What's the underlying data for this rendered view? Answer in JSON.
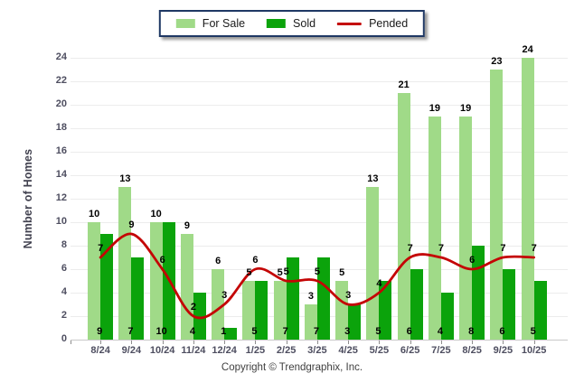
{
  "legend": {
    "border_color": "#1F3864",
    "items": [
      {
        "label": "For Sale",
        "type": "bar",
        "color": "#A0DA88"
      },
      {
        "label": "Sold",
        "type": "bar",
        "color": "#0BA30B"
      },
      {
        "label": "Pended",
        "type": "line",
        "color": "#C40505"
      }
    ]
  },
  "chart_data": {
    "type": "bar",
    "title": "",
    "xlabel": "",
    "ylabel": "Number of Homes",
    "ylim": [
      0,
      24
    ],
    "y_ticks": [
      0,
      2,
      4,
      6,
      8,
      10,
      12,
      14,
      16,
      18,
      20,
      22,
      24
    ],
    "grid": true,
    "legend_position": "top-center",
    "categories": [
      "8/24",
      "9/24",
      "10/24",
      "11/24",
      "12/24",
      "1/25",
      "2/25",
      "3/25",
      "4/25",
      "5/25",
      "6/25",
      "7/25",
      "8/25",
      "9/25",
      "10/25"
    ],
    "series": [
      {
        "name": "For Sale",
        "type": "bar",
        "color": "#A0DA88",
        "values": [
          10,
          13,
          10,
          9,
          6,
          5,
          5,
          3,
          5,
          13,
          21,
          19,
          19,
          23,
          24
        ]
      },
      {
        "name": "Sold",
        "type": "bar",
        "color": "#0BA30B",
        "values": [
          9,
          7,
          10,
          4,
          1,
          5,
          7,
          7,
          3,
          5,
          6,
          4,
          8,
          6,
          5
        ]
      },
      {
        "name": "Pended",
        "type": "line",
        "color": "#C40505",
        "values": [
          7,
          9,
          6,
          2,
          3,
          6,
          5,
          5,
          3,
          4,
          7,
          7,
          6,
          7,
          7
        ]
      }
    ]
  },
  "colors": {
    "background": "#FFFFFF",
    "gridline": "#ECECEC",
    "axis_line": "#C9C9C9",
    "axis_text": "#4E4E60",
    "data_label_text": "#000000"
  },
  "footer": {
    "copyright": "Copyright © Trendgraphix, Inc."
  }
}
